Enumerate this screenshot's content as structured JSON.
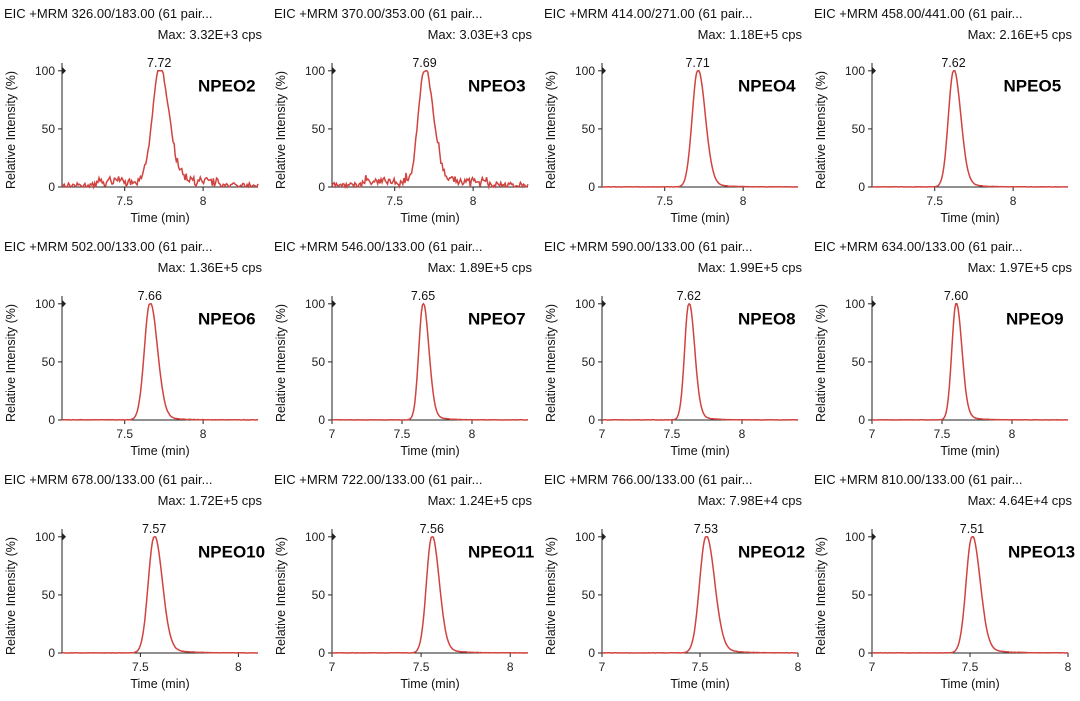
{
  "colors": {
    "trace": "#d0433f",
    "axis": "#222222"
  },
  "chart_data": [
    {
      "type": "line",
      "title": "EIC +MRM 326.00/183.00 (61 pair...",
      "max_label": "Max: 3.32E+3 cps",
      "compound": "NPEO2",
      "peak_label": "7.72",
      "apex": 7.72,
      "sigma": 0.045,
      "noise": 0.35,
      "xlim": [
        7.1,
        8.35
      ],
      "xticks": [
        {
          "v": 7.5,
          "t": "7.5"
        },
        {
          "v": 8,
          "t": "8"
        }
      ],
      "ylim": [
        0,
        105
      ],
      "yticks": [
        {
          "v": 0,
          "t": "0"
        },
        {
          "v": 50,
          "t": "50"
        },
        {
          "v": 100,
          "t": "100"
        }
      ],
      "xlabel": "Time (min)",
      "ylabel": "Relative Intensity (%)"
    },
    {
      "type": "line",
      "title": "EIC +MRM 370.00/353.00 (61 pair...",
      "max_label": "Max: 3.03E+3 cps",
      "compound": "NPEO3",
      "peak_label": "7.69",
      "apex": 7.69,
      "sigma": 0.04,
      "noise": 0.4,
      "xlim": [
        7.1,
        8.35
      ],
      "xticks": [
        {
          "v": 7.5,
          "t": "7.5"
        },
        {
          "v": 8,
          "t": "8"
        }
      ],
      "ylim": [
        0,
        105
      ],
      "yticks": [
        {
          "v": 0,
          "t": "0"
        },
        {
          "v": 50,
          "t": "50"
        },
        {
          "v": 100,
          "t": "100"
        }
      ],
      "xlabel": "Time (min)",
      "ylabel": "Relative Intensity (%)"
    },
    {
      "type": "line",
      "title": "EIC +MRM 414.00/271.00 (61 pair...",
      "max_label": "Max: 1.18E+5 cps",
      "compound": "NPEO4",
      "peak_label": "7.71",
      "apex": 7.71,
      "sigma": 0.035,
      "noise": 0.02,
      "xlim": [
        7.1,
        8.35
      ],
      "xticks": [
        {
          "v": 7.5,
          "t": "7.5"
        },
        {
          "v": 8,
          "t": "8"
        }
      ],
      "ylim": [
        0,
        105
      ],
      "yticks": [
        {
          "v": 0,
          "t": "0"
        },
        {
          "v": 50,
          "t": "50"
        },
        {
          "v": 100,
          "t": "100"
        }
      ],
      "xlabel": "Time (min)",
      "ylabel": "Relative Intensity (%)"
    },
    {
      "type": "line",
      "title": "EIC +MRM 458.00/441.00 (61 pair...",
      "max_label": "Max: 2.16E+5 cps",
      "compound": "NPEO5",
      "peak_label": "7.62",
      "apex": 7.62,
      "sigma": 0.033,
      "noise": 0.02,
      "xlim": [
        7.1,
        8.35
      ],
      "xticks": [
        {
          "v": 7.5,
          "t": "7.5"
        },
        {
          "v": 8,
          "t": "8"
        }
      ],
      "ylim": [
        0,
        105
      ],
      "yticks": [
        {
          "v": 0,
          "t": "0"
        },
        {
          "v": 50,
          "t": "50"
        },
        {
          "v": 100,
          "t": "100"
        }
      ],
      "xlabel": "Time (min)",
      "ylabel": "Relative Intensity (%)"
    },
    {
      "type": "line",
      "title": "EIC +MRM 502.00/133.00 (61 pair...",
      "max_label": "Max: 1.36E+5 cps",
      "compound": "NPEO6",
      "peak_label": "7.66",
      "apex": 7.66,
      "sigma": 0.035,
      "noise": 0.03,
      "xlim": [
        7.1,
        8.35
      ],
      "xticks": [
        {
          "v": 7.5,
          "t": "7.5"
        },
        {
          "v": 8,
          "t": "8"
        }
      ],
      "ylim": [
        0,
        105
      ],
      "yticks": [
        {
          "v": 0,
          "t": "0"
        },
        {
          "v": 50,
          "t": "50"
        },
        {
          "v": 100,
          "t": "100"
        }
      ],
      "xlabel": "Time (min)",
      "ylabel": "Relative Intensity (%)"
    },
    {
      "type": "line",
      "title": "EIC +MRM 546.00/133.00 (61 pair...",
      "max_label": "Max: 1.89E+5 cps",
      "compound": "NPEO7",
      "peak_label": "7.65",
      "apex": 7.65,
      "sigma": 0.03,
      "noise": 0.02,
      "xlim": [
        7.0,
        8.4
      ],
      "xticks": [
        {
          "v": 7,
          "t": "7"
        },
        {
          "v": 7.5,
          "t": "7.5"
        },
        {
          "v": 8,
          "t": "8"
        }
      ],
      "ylim": [
        0,
        105
      ],
      "yticks": [
        {
          "v": 0,
          "t": "0"
        },
        {
          "v": 50,
          "t": "50"
        },
        {
          "v": 100,
          "t": "100"
        }
      ],
      "xlabel": "Time (min)",
      "ylabel": "Relative Intensity (%)"
    },
    {
      "type": "line",
      "title": "EIC +MRM 590.00/133.00 (61 pair...",
      "max_label": "Max: 1.99E+5 cps",
      "compound": "NPEO8",
      "peak_label": "7.62",
      "apex": 7.62,
      "sigma": 0.03,
      "noise": 0.02,
      "xlim": [
        7.0,
        8.4
      ],
      "xticks": [
        {
          "v": 7,
          "t": "7"
        },
        {
          "v": 7.5,
          "t": "7.5"
        },
        {
          "v": 8,
          "t": "8"
        }
      ],
      "ylim": [
        0,
        105
      ],
      "yticks": [
        {
          "v": 0,
          "t": "0"
        },
        {
          "v": 50,
          "t": "50"
        },
        {
          "v": 100,
          "t": "100"
        }
      ],
      "xlabel": "Time (min)",
      "ylabel": "Relative Intensity (%)"
    },
    {
      "type": "line",
      "title": "EIC +MRM 634.00/133.00 (61 pair...",
      "max_label": "Max: 1.97E+5 cps",
      "compound": "NPEO9",
      "peak_label": "7.60",
      "apex": 7.6,
      "sigma": 0.03,
      "noise": 0.02,
      "xlim": [
        7.0,
        8.4
      ],
      "xticks": [
        {
          "v": 7,
          "t": "7"
        },
        {
          "v": 7.5,
          "t": "7.5"
        },
        {
          "v": 8,
          "t": "8"
        }
      ],
      "ylim": [
        0,
        105
      ],
      "yticks": [
        {
          "v": 0,
          "t": "0"
        },
        {
          "v": 50,
          "t": "50"
        },
        {
          "v": 100,
          "t": "100"
        }
      ],
      "xlabel": "Time (min)",
      "ylabel": "Relative Intensity (%)"
    },
    {
      "type": "line",
      "title": "EIC +MRM 678.00/133.00 (61 pair...",
      "max_label": "Max: 1.72E+5 cps",
      "compound": "NPEO10",
      "peak_label": "7.57",
      "apex": 7.57,
      "sigma": 0.03,
      "noise": 0.02,
      "xlim": [
        7.1,
        8.1
      ],
      "xticks": [
        {
          "v": 7.5,
          "t": "7.5"
        },
        {
          "v": 8,
          "t": "8"
        }
      ],
      "ylim": [
        0,
        105
      ],
      "yticks": [
        {
          "v": 0,
          "t": "0"
        },
        {
          "v": 50,
          "t": "50"
        },
        {
          "v": 100,
          "t": "100"
        }
      ],
      "xlabel": "Time (min)",
      "ylabel": "Relative Intensity (%)"
    },
    {
      "type": "line",
      "title": "EIC +MRM 722.00/133.00 (61 pair...",
      "max_label": "Max: 1.24E+5 cps",
      "compound": "NPEO11",
      "peak_label": "7.56",
      "apex": 7.56,
      "sigma": 0.03,
      "noise": 0.02,
      "xlim": [
        7.0,
        8.1
      ],
      "xticks": [
        {
          "v": 7,
          "t": "7"
        },
        {
          "v": 7.5,
          "t": "7.5"
        },
        {
          "v": 8,
          "t": "8"
        }
      ],
      "ylim": [
        0,
        105
      ],
      "yticks": [
        {
          "v": 0,
          "t": "0"
        },
        {
          "v": 50,
          "t": "50"
        },
        {
          "v": 100,
          "t": "100"
        }
      ],
      "xlabel": "Time (min)",
      "ylabel": "Relative Intensity (%)"
    },
    {
      "type": "line",
      "title": "EIC +MRM 766.00/133.00 (61 pair...",
      "max_label": "Max: 7.98E+4 cps",
      "compound": "NPEO12",
      "peak_label": "7.53",
      "apex": 7.53,
      "sigma": 0.032,
      "noise": 0.02,
      "xlim": [
        7.0,
        8.0
      ],
      "xticks": [
        {
          "v": 7,
          "t": "7"
        },
        {
          "v": 7.5,
          "t": "7.5"
        },
        {
          "v": 8,
          "t": "8"
        }
      ],
      "ylim": [
        0,
        105
      ],
      "yticks": [
        {
          "v": 0,
          "t": "0"
        },
        {
          "v": 50,
          "t": "50"
        },
        {
          "v": 100,
          "t": "100"
        }
      ],
      "xlabel": "Time (min)",
      "ylabel": "Relative Intensity (%)"
    },
    {
      "type": "line",
      "title": "EIC +MRM 810.00/133.00 (61 pair...",
      "max_label": "Max: 4.64E+4 cps",
      "compound": "NPEO13",
      "peak_label": "7.51",
      "apex": 7.51,
      "sigma": 0.03,
      "noise": 0.02,
      "xlim": [
        7.0,
        8.0
      ],
      "xticks": [
        {
          "v": 7,
          "t": "7"
        },
        {
          "v": 7.5,
          "t": "7.5"
        },
        {
          "v": 8,
          "t": "8"
        }
      ],
      "ylim": [
        0,
        105
      ],
      "yticks": [
        {
          "v": 0,
          "t": "0"
        },
        {
          "v": 50,
          "t": "50"
        },
        {
          "v": 100,
          "t": "100"
        }
      ],
      "xlabel": "Time (min)",
      "ylabel": "Relative Intensity (%)"
    }
  ]
}
